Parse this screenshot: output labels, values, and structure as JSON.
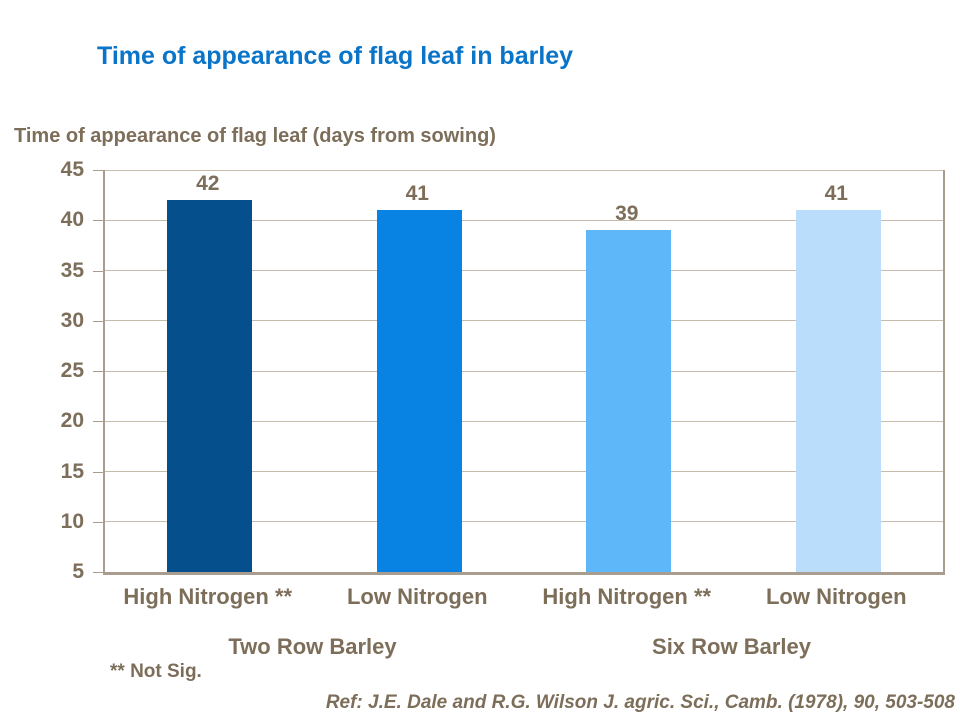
{
  "slide": {
    "title": "Time of appearance of flag leaf in barley",
    "footnote": "** Not Sig.",
    "reference": "Ref: J.E. Dale and R.G. Wilson J. agric. Sci., Camb. (1978), 90, 503-508"
  },
  "chart_data": {
    "type": "bar",
    "title": "Time of appearance of flag leaf in barley",
    "ylabel": "Time of appearance of flag leaf (days from sowing)",
    "xlabel": "",
    "ylim": [
      5,
      45
    ],
    "yticks": [
      45,
      40,
      35,
      30,
      25,
      20,
      15,
      10,
      5
    ],
    "grid": true,
    "legend": "none",
    "categories": [
      "High Nitrogen **",
      "Low Nitrogen",
      "High Nitrogen **",
      "Low Nitrogen"
    ],
    "values": [
      42,
      41,
      39,
      41
    ],
    "data_labels": [
      "42",
      "41",
      "39",
      "41"
    ],
    "bar_colors": [
      "#05508C",
      "#0883E4",
      "#5DB7F9",
      "#B9DDFB"
    ],
    "groups": [
      {
        "label": "Two Row Barley",
        "span": [
          0,
          1
        ]
      },
      {
        "label": "Six Row Barley",
        "span": [
          2,
          3
        ]
      }
    ]
  },
  "colors": {
    "title": "#0A75C8",
    "text": "#7D6E5A",
    "gridline": "#C6BAAA",
    "axis": "#A89D8E",
    "background": "#FFFFFF"
  }
}
